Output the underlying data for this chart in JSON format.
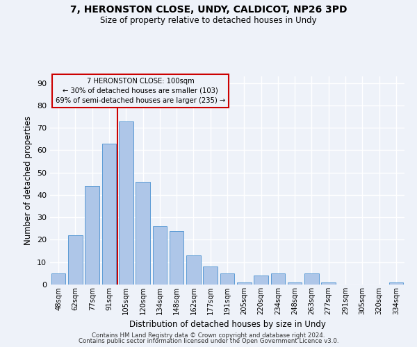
{
  "title1": "7, HERONSTON CLOSE, UNDY, CALDICOT, NP26 3PD",
  "title2": "Size of property relative to detached houses in Undy",
  "xlabel": "Distribution of detached houses by size in Undy",
  "ylabel": "Number of detached properties",
  "categories": [
    "48sqm",
    "62sqm",
    "77sqm",
    "91sqm",
    "105sqm",
    "120sqm",
    "134sqm",
    "148sqm",
    "162sqm",
    "177sqm",
    "191sqm",
    "205sqm",
    "220sqm",
    "234sqm",
    "248sqm",
    "263sqm",
    "277sqm",
    "291sqm",
    "305sqm",
    "320sqm",
    "334sqm"
  ],
  "values": [
    5,
    22,
    44,
    63,
    73,
    46,
    26,
    24,
    13,
    8,
    5,
    1,
    4,
    5,
    1,
    5,
    1,
    0,
    0,
    0,
    1
  ],
  "bar_color": "#aec6e8",
  "bar_edge_color": "#5b9bd5",
  "property_line_color": "#cc0000",
  "annotation_box_color": "#cc0000",
  "annotation_line1": "7 HERONSTON CLOSE: 100sqm",
  "annotation_line2": "← 30% of detached houses are smaller (103)",
  "annotation_line3": "69% of semi-detached houses are larger (235) →",
  "ylim": [
    0,
    93
  ],
  "yticks": [
    0,
    10,
    20,
    30,
    40,
    50,
    60,
    70,
    80,
    90
  ],
  "footnote1": "Contains HM Land Registry data © Crown copyright and database right 2024.",
  "footnote2": "Contains public sector information licensed under the Open Government Licence v3.0.",
  "background_color": "#eef2f9",
  "grid_color": "#ffffff"
}
